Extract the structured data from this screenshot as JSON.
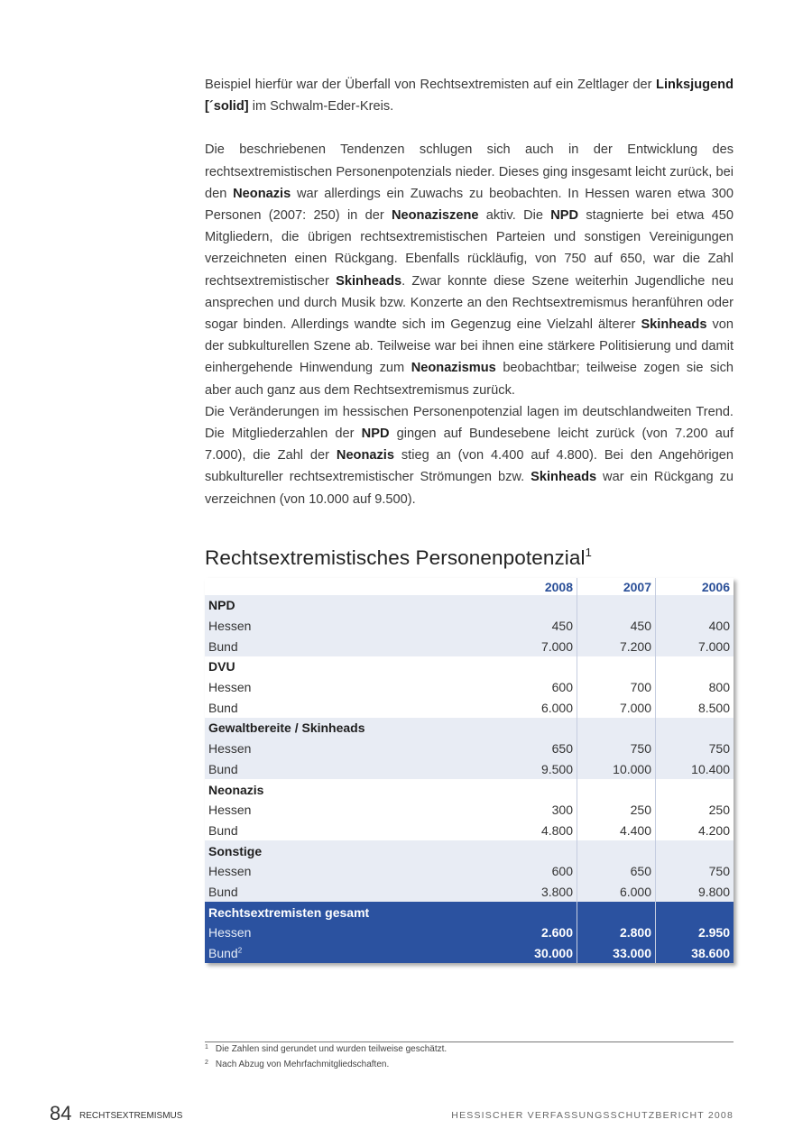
{
  "body": [
    {
      "gap": true,
      "segments": [
        {
          "t": "Beispiel hierfür war der Überfall von Rechtsextremisten auf ein Zeltlager der "
        },
        {
          "t": "Linksjugend [´solid]",
          "b": true
        },
        {
          "t": " im Schwalm-Eder-Kreis."
        }
      ]
    },
    {
      "gap": false,
      "segments": [
        {
          "t": "Die beschriebenen Tendenzen schlugen sich auch in der Entwicklung des rechtsextremistischen Personenpotenzials nieder. Dieses ging insgesamt leicht zurück, bei den "
        },
        {
          "t": "Neonazis",
          "b": true
        },
        {
          "t": " war allerdings ein Zuwachs zu beobachten. In Hessen waren etwa 300 Personen (2007: 250) in der "
        },
        {
          "t": "Neonaziszene",
          "b": true
        },
        {
          "t": " aktiv. Die "
        },
        {
          "t": "NPD",
          "b": true
        },
        {
          "t": " stagnierte bei etwa 450 Mitgliedern, die übrigen rechtsextremistischen Parteien und sonstigen Vereinigungen verzeichneten einen Rückgang. Ebenfalls rückläufig, von 750 auf 650, war die Zahl rechtsextremistischer "
        },
        {
          "t": "Skinheads",
          "b": true
        },
        {
          "t": ". Zwar konnte diese Szene weiterhin Jugendliche neu ansprechen und durch Musik bzw. Konzerte an den Rechtsextremismus heranführen oder sogar binden. Allerdings wandte sich im Gegenzug eine Vielzahl älterer "
        },
        {
          "t": "Skinheads",
          "b": true
        },
        {
          "t": " von der subkulturellen Szene ab. Teilweise war bei ihnen eine stärkere Politisierung und damit einhergehende Hinwendung zum "
        },
        {
          "t": "Neonazismus",
          "b": true
        },
        {
          "t": " beobachtbar; teilweise zogen sie sich aber auch ganz aus dem Rechtsextremismus zurück."
        }
      ]
    },
    {
      "gap": false,
      "segments": [
        {
          "t": "Die Veränderungen im hessischen Personenpotenzial lagen im deutschlandweiten Trend. Die Mitgliederzahlen der "
        },
        {
          "t": "NPD",
          "b": true
        },
        {
          "t": " gingen auf Bundesebene leicht zurück (von 7.200 auf 7.000), die Zahl der "
        },
        {
          "t": "Neonazis",
          "b": true
        },
        {
          "t": " stieg an (von 4.400 auf 4.800). Bei den Angehörigen subkultureller rechtsextremistischer Strömungen bzw. "
        },
        {
          "t": "Skinheads",
          "b": true
        },
        {
          "t": " war ein Rückgang zu verzeichnen (von 10.000 auf 9.500)."
        }
      ]
    }
  ],
  "table": {
    "title": "Rechtsextremistisches Personenpotenzial",
    "title_footnote": "1",
    "years": [
      "2008",
      "2007",
      "2006"
    ],
    "groups": [
      {
        "name": "NPD",
        "shaded": true,
        "rows": [
          {
            "label": "Hessen",
            "values": [
              "450",
              "450",
              "400"
            ]
          },
          {
            "label": "Bund",
            "values": [
              "7.000",
              "7.200",
              "7.000"
            ]
          }
        ]
      },
      {
        "name": "DVU",
        "shaded": false,
        "rows": [
          {
            "label": "Hessen",
            "values": [
              "600",
              "700",
              "800"
            ]
          },
          {
            "label": "Bund",
            "values": [
              "6.000",
              "7.000",
              "8.500"
            ]
          }
        ]
      },
      {
        "name": "Gewaltbereite / Skinheads",
        "shaded": true,
        "rows": [
          {
            "label": "Hessen",
            "values": [
              "650",
              "750",
              "750"
            ]
          },
          {
            "label": "Bund",
            "values": [
              "9.500",
              "10.000",
              "10.400"
            ]
          }
        ]
      },
      {
        "name": "Neonazis",
        "shaded": false,
        "rows": [
          {
            "label": "Hessen",
            "values": [
              "300",
              "250",
              "250"
            ]
          },
          {
            "label": "Bund",
            "values": [
              "4.800",
              "4.400",
              "4.200"
            ]
          }
        ]
      },
      {
        "name": "Sonstige",
        "shaded": true,
        "rows": [
          {
            "label": "Hessen",
            "values": [
              "600",
              "650",
              "750"
            ]
          },
          {
            "label": "Bund",
            "values": [
              "3.800",
              "6.000",
              "9.800"
            ]
          }
        ]
      },
      {
        "name": "Rechtsextremisten gesamt",
        "total": true,
        "rows": [
          {
            "label": "Hessen",
            "values": [
              "2.600",
              "2.800",
              "2.950"
            ]
          },
          {
            "label": "Bund",
            "footnote": "2",
            "values": [
              "30.000",
              "33.000",
              "38.600"
            ]
          }
        ]
      }
    ],
    "colors": {
      "header_text": "#2a4f98",
      "shaded": "#e8ecf4",
      "total": "#2b52a0"
    }
  },
  "footnotes": [
    {
      "mark": "1",
      "text": "Die Zahlen sind gerundet und wurden teilweise geschätzt."
    },
    {
      "mark": "2",
      "text": "Nach Abzug von Mehrfachmitgliedschaften."
    }
  ],
  "footer": {
    "page_number": "84",
    "section": "RECHTSEXTREMISMUS",
    "report": "HESSISCHER VERFASSUNGSSCHUTZBERICHT 2008"
  }
}
